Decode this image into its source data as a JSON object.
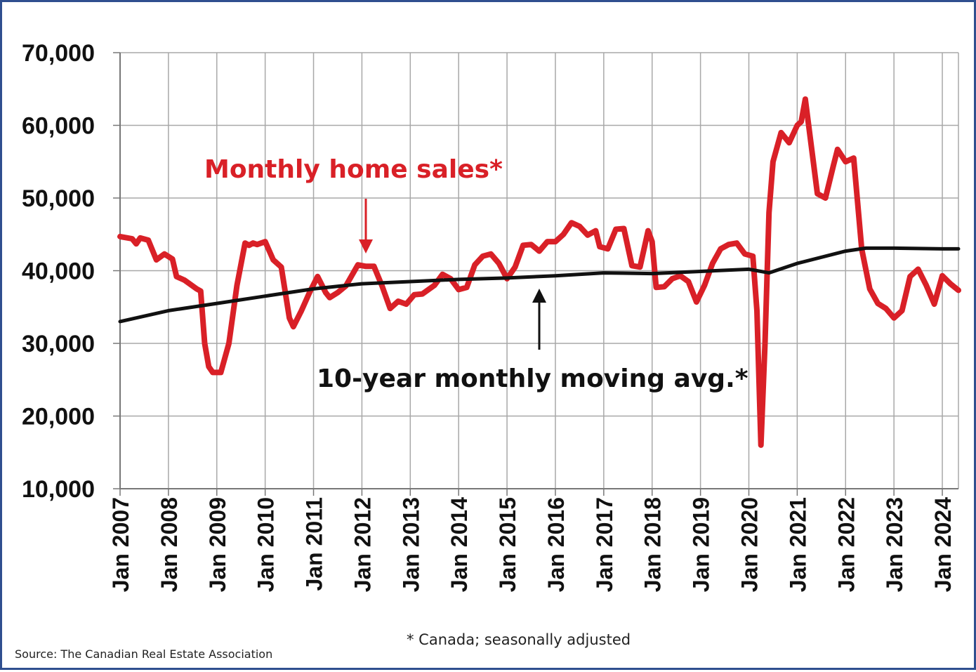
{
  "chart_data": {
    "type": "line",
    "x_labels": [
      "Jan 2007",
      "Jan 2008",
      "Jan 2009",
      "Jan 2010",
      "Jan 2011",
      "Jan 2012",
      "Jan 2013",
      "Jan 2014",
      "Jan 2015",
      "Jan 2016",
      "Jan 2017",
      "Jan 2018",
      "Jan 2019",
      "Jan 2020",
      "Jan 2021",
      "Jan 2022",
      "Jan 2023",
      "Jan 2024"
    ],
    "x_range": [
      "2007-01",
      "2024-05"
    ],
    "y_ticks": [
      "70,000",
      "60,000",
      "50,000",
      "40,000",
      "30,000",
      "20,000",
      "10,000"
    ],
    "ylim": [
      10000,
      70000
    ],
    "grid": true,
    "annotations": {
      "sales_label": "Monthly home sales*",
      "avg_label": "10-year monthly moving avg.*",
      "footnote": "* Canada; seasonally adjusted",
      "source": "Source: The Canadian Real Estate Association"
    },
    "series": [
      {
        "key": "sales",
        "color": "#d92027",
        "points": [
          [
            "2007-01",
            44700
          ],
          [
            "2007-04",
            44400
          ],
          [
            "2007-05",
            43700
          ],
          [
            "2007-06",
            44500
          ],
          [
            "2007-08",
            44200
          ],
          [
            "2007-10",
            41500
          ],
          [
            "2007-12",
            42300
          ],
          [
            "2008-02",
            41600
          ],
          [
            "2008-03",
            39200
          ],
          [
            "2008-05",
            38700
          ],
          [
            "2008-08",
            37500
          ],
          [
            "2008-09",
            37200
          ],
          [
            "2008-10",
            30000
          ],
          [
            "2008-11",
            26800
          ],
          [
            "2008-12",
            26000
          ],
          [
            "2009-02",
            26000
          ],
          [
            "2009-04",
            30000
          ],
          [
            "2009-06",
            38000
          ],
          [
            "2009-08",
            43800
          ],
          [
            "2009-09",
            43500
          ],
          [
            "2009-10",
            43800
          ],
          [
            "2009-11",
            43600
          ],
          [
            "2010-01",
            44000
          ],
          [
            "2010-03",
            41500
          ],
          [
            "2010-05",
            40500
          ],
          [
            "2010-07",
            33500
          ],
          [
            "2010-08",
            32300
          ],
          [
            "2010-10",
            34500
          ],
          [
            "2010-12",
            37000
          ],
          [
            "2011-02",
            39200
          ],
          [
            "2011-04",
            37000
          ],
          [
            "2011-05",
            36300
          ],
          [
            "2011-07",
            37000
          ],
          [
            "2011-09",
            37900
          ],
          [
            "2011-12",
            40800
          ],
          [
            "2012-02",
            40600
          ],
          [
            "2012-04",
            40600
          ],
          [
            "2012-06",
            37900
          ],
          [
            "2012-08",
            34800
          ],
          [
            "2012-10",
            35800
          ],
          [
            "2012-12",
            35400
          ],
          [
            "2013-02",
            36700
          ],
          [
            "2013-04",
            36800
          ],
          [
            "2013-07",
            38000
          ],
          [
            "2013-09",
            39500
          ],
          [
            "2013-11",
            38900
          ],
          [
            "2014-01",
            37400
          ],
          [
            "2014-03",
            37700
          ],
          [
            "2014-05",
            40800
          ],
          [
            "2014-07",
            42000
          ],
          [
            "2014-09",
            42300
          ],
          [
            "2014-11",
            41000
          ],
          [
            "2015-01",
            38900
          ],
          [
            "2015-03",
            40500
          ],
          [
            "2015-05",
            43500
          ],
          [
            "2015-07",
            43600
          ],
          [
            "2015-09",
            42700
          ],
          [
            "2015-11",
            44000
          ],
          [
            "2016-01",
            44000
          ],
          [
            "2016-03",
            45000
          ],
          [
            "2016-05",
            46600
          ],
          [
            "2016-07",
            46100
          ],
          [
            "2016-09",
            44900
          ],
          [
            "2016-11",
            45500
          ],
          [
            "2016-12",
            43300
          ],
          [
            "2017-02",
            43000
          ],
          [
            "2017-04",
            45700
          ],
          [
            "2017-06",
            45800
          ],
          [
            "2017-08",
            40700
          ],
          [
            "2017-10",
            40500
          ],
          [
            "2017-12",
            45500
          ],
          [
            "2018-01",
            44000
          ],
          [
            "2018-02",
            37700
          ],
          [
            "2018-04",
            37800
          ],
          [
            "2018-06",
            38900
          ],
          [
            "2018-08",
            39300
          ],
          [
            "2018-10",
            38500
          ],
          [
            "2018-12",
            35700
          ],
          [
            "2019-02",
            38000
          ],
          [
            "2019-04",
            41000
          ],
          [
            "2019-06",
            43000
          ],
          [
            "2019-08",
            43600
          ],
          [
            "2019-10",
            43800
          ],
          [
            "2019-12",
            42300
          ],
          [
            "2020-02",
            42000
          ],
          [
            "2020-03",
            34500
          ],
          [
            "2020-04",
            16000
          ],
          [
            "2020-05",
            30000
          ],
          [
            "2020-06",
            48000
          ],
          [
            "2020-07",
            55000
          ],
          [
            "2020-09",
            59000
          ],
          [
            "2020-11",
            57600
          ],
          [
            "2021-01",
            60000
          ],
          [
            "2021-02",
            60500
          ],
          [
            "2021-03",
            63600
          ],
          [
            "2021-05",
            55000
          ],
          [
            "2021-06",
            50600
          ],
          [
            "2021-08",
            50000
          ],
          [
            "2021-10",
            54500
          ],
          [
            "2021-11",
            56700
          ],
          [
            "2022-01",
            55000
          ],
          [
            "2022-03",
            55500
          ],
          [
            "2022-05",
            43000
          ],
          [
            "2022-07",
            37500
          ],
          [
            "2022-09",
            35500
          ],
          [
            "2022-11",
            34800
          ],
          [
            "2023-01",
            33500
          ],
          [
            "2023-03",
            34500
          ],
          [
            "2023-05",
            39200
          ],
          [
            "2023-07",
            40200
          ],
          [
            "2023-09",
            38000
          ],
          [
            "2023-11",
            35400
          ],
          [
            "2024-01",
            39300
          ],
          [
            "2024-03",
            38200
          ],
          [
            "2024-05",
            37300
          ]
        ]
      },
      {
        "key": "avg",
        "color": "#111111",
        "points": [
          [
            "2007-01",
            33000
          ],
          [
            "2008-01",
            34500
          ],
          [
            "2009-01",
            35500
          ],
          [
            "2010-01",
            36500
          ],
          [
            "2011-01",
            37500
          ],
          [
            "2012-01",
            38200
          ],
          [
            "2013-01",
            38500
          ],
          [
            "2014-01",
            38800
          ],
          [
            "2015-01",
            39000
          ],
          [
            "2016-01",
            39300
          ],
          [
            "2017-01",
            39700
          ],
          [
            "2018-01",
            39600
          ],
          [
            "2019-01",
            39900
          ],
          [
            "2020-01",
            40200
          ],
          [
            "2020-06",
            39700
          ],
          [
            "2021-01",
            41000
          ],
          [
            "2022-01",
            42700
          ],
          [
            "2022-06",
            43100
          ],
          [
            "2023-01",
            43100
          ],
          [
            "2024-01",
            43000
          ],
          [
            "2024-05",
            43000
          ]
        ]
      }
    ]
  }
}
